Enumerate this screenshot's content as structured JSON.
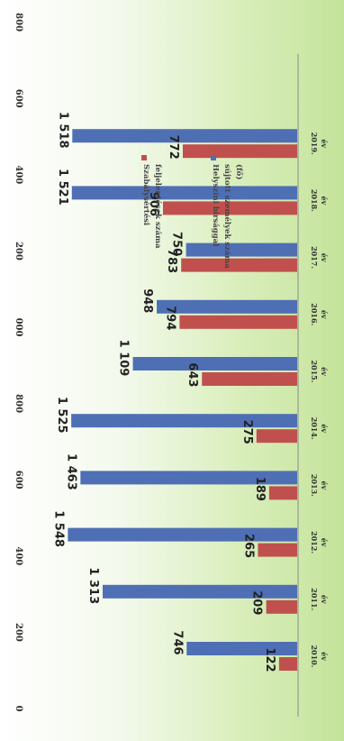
{
  "chart_data": {
    "type": "bar",
    "orientation": "rotated-90",
    "categories": [
      "2010. év",
      "2011. év",
      "2012. év",
      "2013. év",
      "2014. év",
      "2015. év",
      "2016. év",
      "2017. év",
      "2018. év",
      "2019. év"
    ],
    "series": [
      {
        "name": "Szabálysértési feljelentések száma",
        "color": "#c0504d",
        "values": [
          122,
          209,
          265,
          189,
          275,
          643,
          794,
          783,
          906,
          772
        ]
      },
      {
        "name": "Helyszíni bírsággal sújtott személyek száma (fő)",
        "color": "#4f6fb5",
        "values": [
          746,
          1313,
          1548,
          1463,
          1525,
          1109,
          948,
          750,
          1521,
          1518
        ]
      }
    ],
    "data_labels": {
      "s0": [
        "122",
        "209",
        "265",
        "189",
        "275",
        "643",
        "794",
        "783",
        "906",
        "772"
      ],
      "s1": [
        "746",
        "1 313",
        "1 548",
        "1 463",
        "1 525",
        "1 109",
        "948",
        "750",
        "1 521",
        "1 518"
      ]
    },
    "axis_ticks": [
      "0",
      "200",
      "400",
      "600",
      "800",
      "000",
      "200",
      "400",
      "600",
      "800"
    ],
    "ylim": [
      0,
      1800
    ],
    "grid": false,
    "legend_position": "right"
  }
}
